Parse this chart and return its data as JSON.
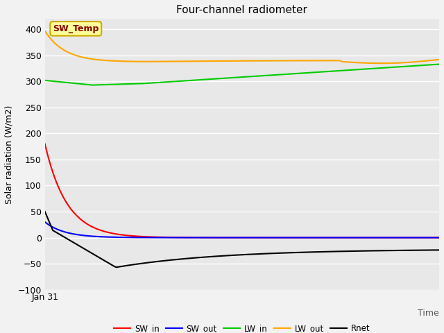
{
  "title": "Four-channel radiometer",
  "xlabel": "Time",
  "ylabel": "Solar radiation (W/m2)",
  "annotation_text": "SW_Temp",
  "annotation_color": "#8B0000",
  "annotation_bg": "#FFFF99",
  "annotation_border": "#CCAA00",
  "x_tick_label": "Jan 31",
  "ylim": [
    -100,
    420
  ],
  "yticks": [
    -100,
    -50,
    0,
    50,
    100,
    150,
    200,
    250,
    300,
    350,
    400
  ],
  "plot_bg": "#E8E8E8",
  "fig_bg": "#F2F2F2",
  "lines": {
    "SW_in": {
      "color": "#FF0000",
      "label": "SW_in"
    },
    "SW_out": {
      "color": "#0000FF",
      "label": "SW_out"
    },
    "LW_in": {
      "color": "#00CC00",
      "label": "LW_in"
    },
    "LW_out": {
      "color": "#FFA500",
      "label": "LW_out"
    },
    "Rnet": {
      "color": "#000000",
      "label": "Rnet"
    }
  },
  "n_points": 200
}
